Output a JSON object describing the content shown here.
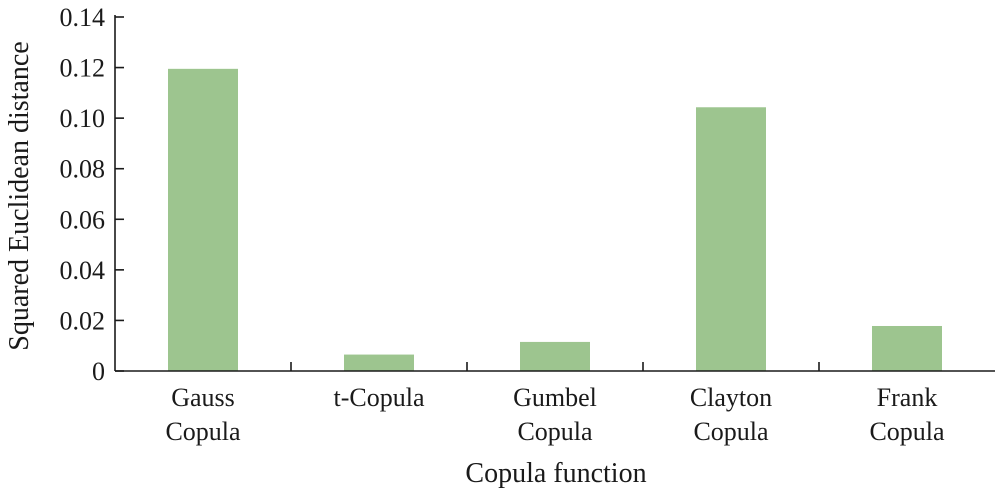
{
  "chart_data": {
    "type": "bar",
    "categories": [
      [
        "Gauss",
        "Copula"
      ],
      [
        "t-Copula"
      ],
      [
        "Gumbel",
        "Copula"
      ],
      [
        "Clayton",
        "Copula"
      ],
      [
        "Frank",
        "Copula"
      ]
    ],
    "values": [
      0.1195,
      0.0065,
      0.0115,
      0.1043,
      0.0178
    ],
    "xlabel": "Copula function",
    "ylabel": "Squared Euclidean distance",
    "ylim": [
      0,
      0.14
    ],
    "yticks": [
      "0",
      "0.02",
      "0.04",
      "0.06",
      "0.08",
      "0.10",
      "0.12",
      "0.14"
    ],
    "bar_color": "#9dc58f",
    "grid": false
  }
}
